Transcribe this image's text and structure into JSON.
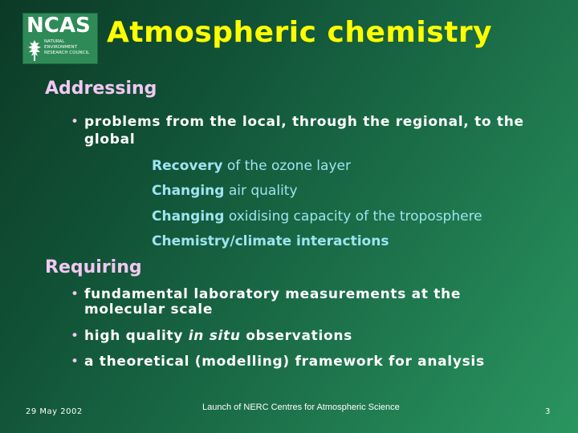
{
  "logo": {
    "word": "NCAS",
    "sub": [
      "NATURAL",
      "ENVIRONMENT",
      "RESEARCH COUNCIL"
    ]
  },
  "title": "Atmospheric chemistry",
  "section1": {
    "heading": "Addressing",
    "bullet": "problems from the local, through the regional, to the global",
    "items": [
      {
        "bold": "Recovery",
        "rest": " of the ozone layer"
      },
      {
        "bold": "Changing",
        "rest": " air quality"
      },
      {
        "bold": "Changing",
        "rest": " oxidising capacity of the troposphere"
      },
      {
        "bold": "Chemistry/climate interactions",
        "rest": ""
      }
    ]
  },
  "section2": {
    "heading": "Requiring",
    "bullets": [
      "fundamental laboratory measurements at the molecular scale",
      {
        "pre": "high quality ",
        "em": "in situ",
        "post": " observations"
      },
      "a theoretical (modelling) framework for analysis"
    ]
  },
  "footer": {
    "date": "29 May 2002",
    "center": "Launch of NERC Centres for Atmospheric Science",
    "page": "3"
  }
}
